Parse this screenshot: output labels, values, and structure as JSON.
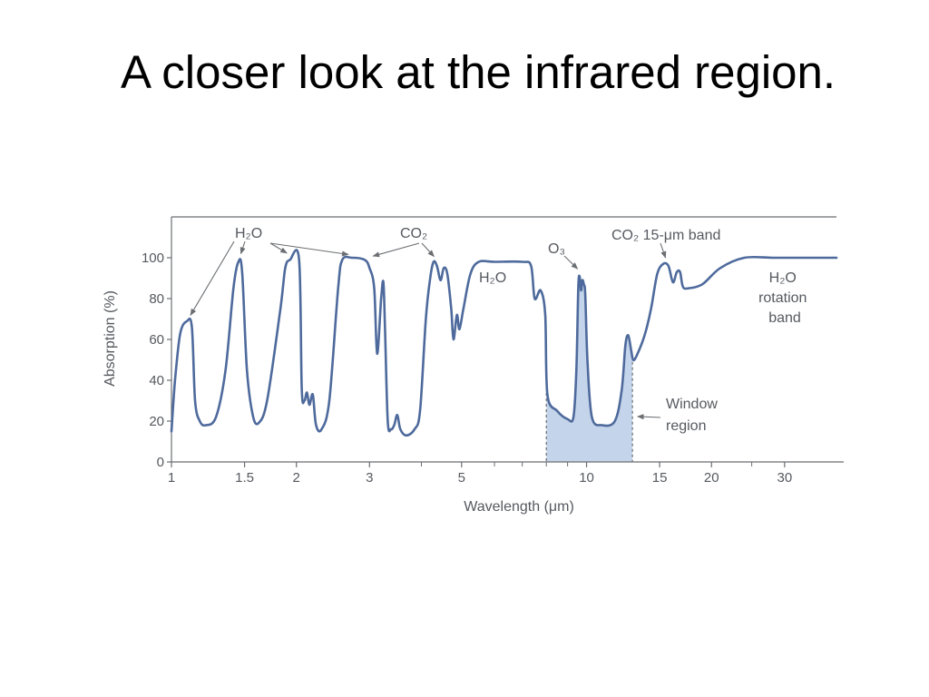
{
  "slide": {
    "title": "A closer look at the infrared region."
  },
  "colors": {
    "curve": "#4e6a9c",
    "window_fill": "#c4d4ea",
    "axis": "#6b6e72",
    "text": "#55595f",
    "arrow": "#6b6e72"
  },
  "chart_data": {
    "type": "line",
    "title": "",
    "xlabel": "Wavelength (μm)",
    "ylabel": "Absorption (%)",
    "x_scale": "log",
    "xlim": [
      1,
      40
    ],
    "ylim": [
      0,
      120
    ],
    "x_ticks": [
      1,
      1.5,
      2,
      3,
      5,
      10,
      15,
      20,
      30
    ],
    "x_tick_labels": [
      "1",
      "1.5",
      "2",
      "3",
      "5",
      "10",
      "15",
      "20",
      "30"
    ],
    "x_minor_ticks": [
      4,
      6,
      7,
      8,
      9,
      25
    ],
    "y_ticks": [
      0,
      20,
      40,
      60,
      80,
      100
    ],
    "y_tick_labels": [
      "0",
      "20",
      "40",
      "60",
      "80",
      "100"
    ],
    "grid": false,
    "series": [
      {
        "points": [
          [
            1.0,
            15
          ],
          [
            1.02,
            40
          ],
          [
            1.05,
            63
          ],
          [
            1.09,
            69
          ],
          [
            1.12,
            66
          ],
          [
            1.14,
            30
          ],
          [
            1.17,
            20
          ],
          [
            1.21,
            18
          ],
          [
            1.28,
            22
          ],
          [
            1.35,
            45
          ],
          [
            1.41,
            85
          ],
          [
            1.45,
            98
          ],
          [
            1.48,
            93
          ],
          [
            1.52,
            45
          ],
          [
            1.57,
            23
          ],
          [
            1.62,
            19
          ],
          [
            1.7,
            30
          ],
          [
            1.83,
            75
          ],
          [
            1.88,
            95
          ],
          [
            1.93,
            99
          ],
          [
            2.03,
            99
          ],
          [
            2.06,
            36
          ],
          [
            2.09,
            30
          ],
          [
            2.12,
            34
          ],
          [
            2.15,
            28
          ],
          [
            2.19,
            33
          ],
          [
            2.23,
            18
          ],
          [
            2.3,
            16
          ],
          [
            2.4,
            30
          ],
          [
            2.52,
            85
          ],
          [
            2.58,
            99
          ],
          [
            2.72,
            100
          ],
          [
            2.92,
            99
          ],
          [
            3.0,
            95
          ],
          [
            3.08,
            85
          ],
          [
            3.13,
            53
          ],
          [
            3.2,
            80
          ],
          [
            3.24,
            88
          ],
          [
            3.27,
            65
          ],
          [
            3.32,
            20
          ],
          [
            3.38,
            16
          ],
          [
            3.44,
            18
          ],
          [
            3.5,
            23
          ],
          [
            3.56,
            16
          ],
          [
            3.68,
            13
          ],
          [
            3.85,
            16
          ],
          [
            3.97,
            25
          ],
          [
            4.1,
            70
          ],
          [
            4.2,
            90
          ],
          [
            4.28,
            98
          ],
          [
            4.36,
            96
          ],
          [
            4.45,
            89
          ],
          [
            4.53,
            95
          ],
          [
            4.62,
            92
          ],
          [
            4.72,
            75
          ],
          [
            4.78,
            60
          ],
          [
            4.87,
            72
          ],
          [
            4.94,
            65
          ],
          [
            5.05,
            75
          ],
          [
            5.25,
            92
          ],
          [
            5.5,
            98
          ],
          [
            6.0,
            98
          ],
          [
            7.0,
            98
          ],
          [
            7.35,
            96
          ],
          [
            7.5,
            80
          ],
          [
            7.75,
            84
          ],
          [
            7.95,
            72
          ],
          [
            8.05,
            33
          ],
          [
            8.5,
            25
          ],
          [
            9.0,
            21
          ],
          [
            9.3,
            22
          ],
          [
            9.45,
            45
          ],
          [
            9.55,
            85
          ],
          [
            9.62,
            91
          ],
          [
            9.7,
            84
          ],
          [
            9.77,
            89
          ],
          [
            9.85,
            87
          ],
          [
            9.93,
            82
          ],
          [
            10.05,
            50
          ],
          [
            10.3,
            22
          ],
          [
            10.9,
            18
          ],
          [
            11.7,
            20
          ],
          [
            12.15,
            35
          ],
          [
            12.4,
            57
          ],
          [
            12.6,
            62
          ],
          [
            12.8,
            55
          ],
          [
            12.95,
            50
          ],
          [
            13.2,
            52
          ],
          [
            13.8,
            62
          ],
          [
            14.3,
            75
          ],
          [
            14.8,
            92
          ],
          [
            15.3,
            97
          ],
          [
            15.75,
            96
          ],
          [
            16.15,
            88
          ],
          [
            16.5,
            93
          ],
          [
            16.8,
            93
          ],
          [
            17.05,
            86
          ],
          [
            17.5,
            85
          ],
          [
            19.0,
            87
          ],
          [
            21.0,
            95
          ],
          [
            24.0,
            100
          ],
          [
            28.0,
            100
          ],
          [
            32.0,
            100
          ],
          [
            40.0,
            100
          ]
        ]
      }
    ],
    "shaded_regions": [
      {
        "x_range": [
          8.0,
          12.9
        ]
      }
    ],
    "annotations": [
      {
        "id": "h2o-1",
        "text": "H₂O",
        "targets": [
          [
            1.1,
            69
          ],
          [
            1.46,
            99
          ],
          [
            1.93,
            100
          ],
          [
            2.72,
            100
          ]
        ]
      },
      {
        "id": "co2-1",
        "text": "CO₂",
        "targets": [
          [
            3.0,
            99
          ],
          [
            4.35,
            98
          ]
        ]
      },
      {
        "id": "h2o-2",
        "text": "H₂O",
        "targets": []
      },
      {
        "id": "o3",
        "text": "O₃",
        "targets": [
          [
            9.65,
            92
          ]
        ]
      },
      {
        "id": "co2-15",
        "text": "CO₂ 15-μm band",
        "targets": [
          [
            15.6,
            97
          ]
        ]
      },
      {
        "id": "h2o-rot",
        "text": "H₂O rotation band",
        "targets": []
      },
      {
        "id": "window",
        "text": "Window region",
        "targets": [
          [
            13.0,
            21
          ]
        ]
      }
    ]
  }
}
